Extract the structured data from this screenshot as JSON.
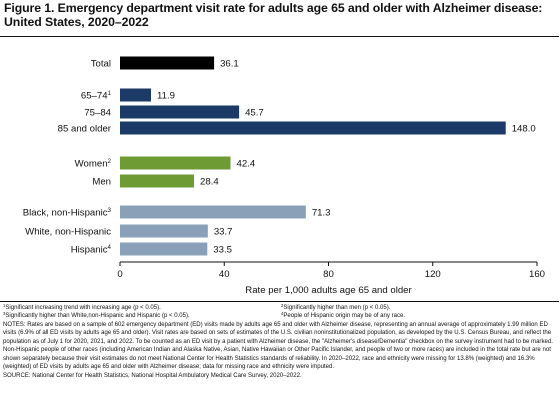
{
  "title_line1": "Figure 1. Emergency department visit rate for adults age 65 and older with Alzheimer disease:",
  "title_line2": "United States, 2020–2022",
  "colors": {
    "total": "#000000",
    "age": "#1b3a66",
    "sex": "#6e9b33",
    "race": "#8aa0b9"
  },
  "chart_data": {
    "type": "bar",
    "orientation": "horizontal",
    "xlabel": "Rate per 1,000 adults age 65 and older",
    "xlim": [
      0,
      160
    ],
    "xticks": [
      0,
      40,
      80,
      120,
      160
    ],
    "grid": false,
    "bars": [
      {
        "label": "Total",
        "sup": "",
        "value": 36.1,
        "value_label": "36.1",
        "group": "total"
      },
      {
        "label": "65–74",
        "sup": "1",
        "value": 11.9,
        "value_label": "11.9",
        "group": "age"
      },
      {
        "label": "75–84",
        "sup": "",
        "value": 45.7,
        "value_label": "45.7",
        "group": "age"
      },
      {
        "label": "85 and older",
        "sup": "",
        "value": 148.0,
        "value_label": "148.0",
        "group": "age"
      },
      {
        "label": "Women",
        "sup": "2",
        "value": 42.4,
        "value_label": "42.4",
        "group": "sex"
      },
      {
        "label": "Men",
        "sup": "",
        "value": 28.4,
        "value_label": "28.4",
        "group": "sex"
      },
      {
        "label": "Black, non-Hispanic",
        "sup": "3",
        "value": 71.3,
        "value_label": "71.3",
        "group": "race"
      },
      {
        "label": "White, non-Hispanic",
        "sup": "",
        "value": 33.7,
        "value_label": "33.7",
        "group": "race"
      },
      {
        "label": "Hispanic",
        "sup": "4",
        "value": 33.5,
        "value_label": "33.5",
        "group": "race"
      }
    ]
  },
  "footnotes": {
    "fn1_sup": "1",
    "fn1": "Significant increasing trend with increasing age (p < 0.05).",
    "fn2_sup": "2",
    "fn2": "Significantly higher than men (p < 0.05).",
    "fn3_sup": "3",
    "fn3": "Significantly higher than White,non-Hispanic and Hispanic (p < 0.05).",
    "fn4_sup": "4",
    "fn4": "People of Hispanic origin may be of any race.",
    "notes": "NOTES: Rates are based on a sample of 602 emergency department (ED) visits made by adults age 65 and older with Alzheimer disease, representing an annual average of approximately 1.99 million ED visits (6.9% of all ED visits by adults age 65 and older). Visit rates are based on sets of estimates of the U.S. civilian noninstitutionalized population, as developed by the U.S. Census Bureau, and reflect the population as of July 1 for 2020, 2021, and 2022. To be counted as an ED visit by a patient with Alzheimer disease, the \"Alzheimer's disease/Dementia\" checkbox on the survey instrument had to be marked. Non-Hispanic people of other races (including American Indian and Alaska Native, Asian, Native Hawaiian or Other Pacific Islander, and people of two or more races) are included in the total rate but are not shown separately because their visit estimates do not meet National Center for Health Statistics standards of reliability. In 2020–2022, race and ethnicity were missing for 13.8% (weighted) and 16.3% (weighted) of ED visits by adults age 65 and older with Alzheimer disease; data for missing race and ethnicity were imputed.",
    "source": "SOURCE: National Center for Health Statistics, National Hospital Ambulatory Medical Care Survey, 2020–2022."
  }
}
